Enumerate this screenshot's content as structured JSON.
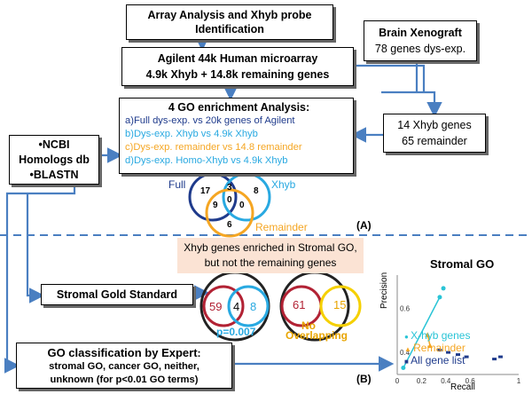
{
  "boxes": {
    "array_analysis": [
      "Array Analysis and Xhyb probe",
      "Identification"
    ],
    "agilent": [
      "Agilent 44k Human microarray",
      "4.9k Xhyb + 14.8k remaining genes"
    ],
    "brain": [
      "Brain Xenograft",
      "78 genes dys-exp."
    ],
    "go_enrichment": {
      "title": "4 GO enrichment Analysis:",
      "items": [
        {
          "text": "a)Full dys-exp. vs 20k genes of Agilent",
          "color": "#1f3b8c"
        },
        {
          "text": "b)Dys-exp. Xhyb vs 4.9k Xhyb",
          "color": "#29a9e1"
        },
        {
          "text": "c)Dys-exp. remainder vs 14.8 remainder",
          "color": "#f5a623"
        },
        {
          "text": "d)Dys-exp. Homo-Xhyb vs 4.9k Xhyb",
          "color": "#29a9e1"
        }
      ]
    },
    "xhyb_genes": [
      "14 Xhyb genes",
      "65 remainder"
    ],
    "ncbi": [
      "•NCBI",
      "Homologs db",
      "•BLASTN"
    ],
    "stromal_gold": "Stromal Gold Standard",
    "go_expert": {
      "title": "GO classification by Expert",
      "title_suffix": ":",
      "lines": [
        "stromal GO, cancer GO, neither,",
        "unknown (for p<0.01 GO terms)"
      ]
    }
  },
  "venn": {
    "labels": {
      "full": "Full",
      "xhyb": "Xhyb",
      "remainder": "Remainder"
    },
    "values": {
      "full_only": "17",
      "full_xhyb": "3",
      "xhyb_only": "8",
      "full_rem": "9",
      "center": "0",
      "xhyb_rem": "0",
      "rem_only": "6"
    }
  },
  "panel_labels": {
    "a": "(A)",
    "b": "(B)"
  },
  "stromal_note": [
    "Xhyb genes enriched in Stromal GO,",
    "but not the remaining genes"
  ],
  "small_venns": {
    "left": {
      "a": "59",
      "overlap": "4",
      "b": "8",
      "pvalue": "p=0.007"
    },
    "right": {
      "a": "61",
      "b": "15",
      "note1": "No",
      "note2": "Overlapping"
    }
  },
  "chart_data": {
    "type": "scatter",
    "title": "Stromal GO",
    "xlabel": "Recall",
    "ylabel": "Precision",
    "xlim": [
      0,
      1.0
    ],
    "ylim": [
      0.3,
      0.75
    ],
    "xticks": [
      "0",
      "0.2",
      "0.4",
      "0.6",
      "1"
    ],
    "yticks": [
      "0.4",
      "0.6"
    ],
    "series": [
      {
        "name": "X-hyb genes",
        "color": "#29c4d6",
        "points": [
          [
            0.05,
            0.33
          ],
          [
            0.35,
            0.65
          ],
          [
            0.38,
            0.69
          ]
        ]
      },
      {
        "name": "Remainder",
        "color": "#f5a623",
        "points": [
          [
            0.25,
            0.48
          ],
          [
            0.27,
            0.43
          ]
        ]
      },
      {
        "name": "All gene list",
        "color": "#1f3b8c",
        "points": [
          [
            0.35,
            0.41
          ],
          [
            0.42,
            0.4
          ],
          [
            0.5,
            0.39
          ],
          [
            0.57,
            0.38
          ],
          [
            0.8,
            0.37
          ],
          [
            0.85,
            0.38
          ]
        ]
      }
    ]
  }
}
